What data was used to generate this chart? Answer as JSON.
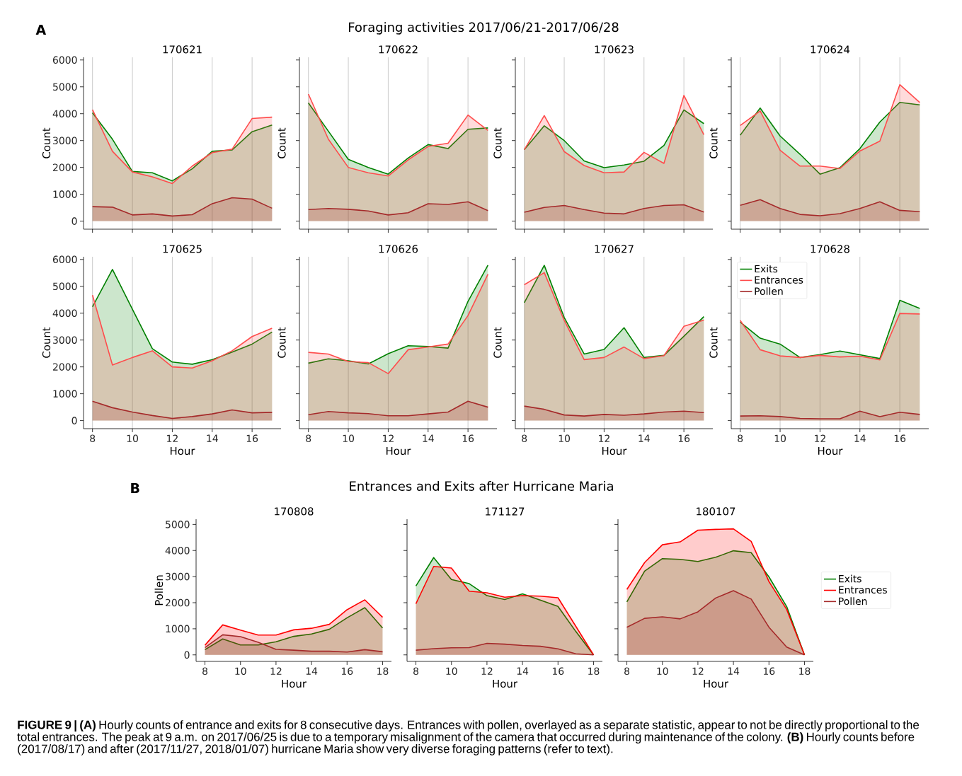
{
  "chart_data": [
    {
      "type": "area",
      "title": "170621",
      "ylabel": "Count",
      "x": [
        8,
        9,
        10,
        11,
        12,
        13,
        14,
        15,
        16,
        17
      ],
      "xlim": [
        7.55,
        17.45
      ],
      "ylim": [
        -300,
        6100
      ],
      "xticks": [
        8,
        10,
        12,
        14,
        16
      ],
      "yticks": [
        0,
        1000,
        2000,
        3000,
        4000,
        5000,
        6000
      ],
      "grid": "x",
      "tick_labels": "y",
      "annotations": [
        "A",
        "Foraging activities 2017/06/21-2017/06/28"
      ],
      "series": [
        {
          "color": "#008000",
          "values": [
            4030,
            3050,
            1850,
            1800,
            1500,
            1950,
            2600,
            2650,
            3330,
            3580
          ]
        },
        {
          "color": "#ff4c4c",
          "values": [
            4150,
            2600,
            1830,
            1650,
            1400,
            2050,
            2550,
            2680,
            3820,
            3870
          ]
        },
        {
          "color": "#a52a2a",
          "values": [
            540,
            520,
            230,
            270,
            190,
            240,
            650,
            870,
            820,
            480
          ]
        }
      ]
    },
    {
      "type": "area",
      "title": "170622",
      "ylabel": "Count",
      "x": [
        8,
        9,
        10,
        11,
        12,
        13,
        14,
        15,
        16,
        17
      ],
      "xlim": [
        7.55,
        17.45
      ],
      "ylim": [
        -300,
        6100
      ],
      "xticks": [
        8,
        10,
        12,
        14,
        16
      ],
      "yticks": [
        0,
        1000,
        2000,
        3000,
        4000,
        5000,
        6000
      ],
      "grid": "x",
      "tick_labels": false,
      "series": [
        {
          "color": "#008000",
          "values": [
            4400,
            3350,
            2300,
            2000,
            1750,
            2350,
            2850,
            2700,
            3420,
            3470
          ]
        },
        {
          "color": "#ff4c4c",
          "values": [
            4730,
            3050,
            2000,
            1800,
            1680,
            2280,
            2780,
            2900,
            3950,
            3380
          ]
        },
        {
          "color": "#a52a2a",
          "values": [
            430,
            470,
            440,
            380,
            230,
            310,
            650,
            620,
            720,
            390
          ]
        }
      ]
    },
    {
      "type": "area",
      "title": "170623",
      "ylabel": "Count",
      "x": [
        8,
        9,
        10,
        11,
        12,
        13,
        14,
        15,
        16,
        17
      ],
      "xlim": [
        7.55,
        17.45
      ],
      "ylim": [
        -300,
        6100
      ],
      "xticks": [
        8,
        10,
        12,
        14,
        16
      ],
      "yticks": [
        0,
        1000,
        2000,
        3000,
        4000,
        5000,
        6000
      ],
      "grid": "x",
      "tick_labels": false,
      "series": [
        {
          "color": "#008000",
          "values": [
            2660,
            3550,
            3000,
            2240,
            1990,
            2090,
            2230,
            2820,
            4140,
            3630
          ]
        },
        {
          "color": "#ff4c4c",
          "values": [
            2660,
            3930,
            2590,
            2070,
            1800,
            1830,
            2560,
            2150,
            4680,
            3220
          ]
        },
        {
          "color": "#a52a2a",
          "values": [
            330,
            510,
            580,
            430,
            300,
            270,
            470,
            580,
            610,
            340
          ]
        }
      ]
    },
    {
      "type": "area",
      "title": "170624",
      "ylabel": "Count",
      "x": [
        8,
        9,
        10,
        11,
        12,
        13,
        14,
        15,
        16,
        17
      ],
      "xlim": [
        7.55,
        17.45
      ],
      "ylim": [
        -300,
        6100
      ],
      "xticks": [
        8,
        10,
        12,
        14,
        16
      ],
      "yticks": [
        0,
        1000,
        2000,
        3000,
        4000,
        5000,
        6000
      ],
      "grid": "x",
      "tick_labels": false,
      "series": [
        {
          "color": "#008000",
          "values": [
            3200,
            4210,
            3170,
            2490,
            1750,
            1990,
            2700,
            3690,
            4420,
            4330
          ]
        },
        {
          "color": "#ff4c4c",
          "values": [
            3560,
            4100,
            2640,
            2050,
            2050,
            1960,
            2610,
            2980,
            5080,
            4420
          ]
        },
        {
          "color": "#a52a2a",
          "values": [
            590,
            800,
            470,
            250,
            200,
            280,
            470,
            720,
            400,
            350
          ]
        }
      ]
    },
    {
      "type": "area",
      "title": "170625",
      "xlabel": "Hour",
      "ylabel": "Count",
      "x": [
        8,
        9,
        10,
        11,
        12,
        13,
        14,
        15,
        16,
        17
      ],
      "xlim": [
        7.55,
        17.45
      ],
      "ylim": [
        -300,
        6100
      ],
      "xticks": [
        8,
        10,
        12,
        14,
        16
      ],
      "yticks": [
        0,
        1000,
        2000,
        3000,
        4000,
        5000,
        6000
      ],
      "grid": "x",
      "series": [
        {
          "color": "#008000",
          "values": [
            4240,
            5630,
            4150,
            2680,
            2180,
            2100,
            2270,
            2550,
            2850,
            3300
          ]
        },
        {
          "color": "#ff4c4c",
          "values": [
            4670,
            2070,
            2350,
            2600,
            2000,
            1960,
            2230,
            2600,
            3130,
            3440
          ]
        },
        {
          "color": "#a52a2a",
          "values": [
            720,
            480,
            320,
            190,
            80,
            150,
            250,
            400,
            290,
            310
          ]
        }
      ]
    },
    {
      "type": "area",
      "title": "170626",
      "xlabel": "Hour",
      "ylabel": "Count",
      "x": [
        8,
        9,
        10,
        11,
        12,
        13,
        14,
        15,
        16,
        17
      ],
      "xlim": [
        7.55,
        17.45
      ],
      "ylim": [
        -300,
        6100
      ],
      "xticks": [
        8,
        10,
        12,
        14,
        16
      ],
      "yticks": [
        0,
        1000,
        2000,
        3000,
        4000,
        5000,
        6000
      ],
      "grid": "x",
      "tick_labels": "x",
      "series": [
        {
          "color": "#008000",
          "values": [
            2140,
            2300,
            2230,
            2110,
            2490,
            2790,
            2760,
            2700,
            4440,
            5790
          ]
        },
        {
          "color": "#ff4c4c",
          "values": [
            2540,
            2480,
            2200,
            2160,
            1750,
            2640,
            2740,
            2850,
            3910,
            5450
          ]
        },
        {
          "color": "#a52a2a",
          "values": [
            220,
            340,
            290,
            260,
            180,
            180,
            250,
            320,
            720,
            500
          ]
        }
      ]
    },
    {
      "type": "area",
      "title": "170627",
      "xlabel": "Hour",
      "ylabel": "Count",
      "x": [
        8,
        9,
        10,
        11,
        12,
        13,
        14,
        15,
        16,
        17
      ],
      "xlim": [
        7.55,
        17.45
      ],
      "ylim": [
        -300,
        6100
      ],
      "xticks": [
        8,
        10,
        12,
        14,
        16
      ],
      "yticks": [
        0,
        1000,
        2000,
        3000,
        4000,
        5000,
        6000
      ],
      "grid": "x",
      "tick_labels": "x",
      "series": [
        {
          "color": "#008000",
          "values": [
            4390,
            5780,
            3840,
            2480,
            2650,
            3460,
            2350,
            2430,
            3140,
            3870
          ]
        },
        {
          "color": "#ff4c4c",
          "values": [
            5060,
            5510,
            3730,
            2270,
            2350,
            2740,
            2310,
            2420,
            3510,
            3740
          ]
        },
        {
          "color": "#a52a2a",
          "values": [
            540,
            420,
            210,
            170,
            230,
            200,
            250,
            320,
            350,
            300
          ]
        }
      ]
    },
    {
      "type": "area",
      "title": "170628",
      "xlabel": "Hour",
      "ylabel": "Count",
      "x": [
        8,
        9,
        10,
        11,
        12,
        13,
        14,
        15,
        16,
        17
      ],
      "xlim": [
        7.55,
        17.45
      ],
      "ylim": [
        -300,
        6100
      ],
      "xticks": [
        8,
        10,
        12,
        14,
        16
      ],
      "yticks": [
        0,
        1000,
        2000,
        3000,
        4000,
        5000,
        6000
      ],
      "grid": "x",
      "tick_labels": "x",
      "legend": "top left",
      "series": [
        {
          "name": "Exits",
          "color": "#008000",
          "values": [
            3670,
            3070,
            2850,
            2350,
            2460,
            2590,
            2450,
            2310,
            4480,
            4180
          ]
        },
        {
          "name": "Entrances",
          "color": "#ff4c4c",
          "values": [
            3730,
            2640,
            2410,
            2350,
            2430,
            2370,
            2400,
            2260,
            3990,
            3970
          ]
        },
        {
          "name": "Pollen",
          "color": "#a52a2a",
          "values": [
            170,
            180,
            150,
            80,
            70,
            70,
            350,
            150,
            310,
            230
          ]
        }
      ]
    },
    {
      "type": "area",
      "title": "170808",
      "xlabel": "Hour",
      "ylabel": "Pollen",
      "x": [
        8,
        9,
        10,
        11,
        12,
        13,
        14,
        15,
        16,
        17,
        18
      ],
      "xlim": [
        7.5,
        18.5
      ],
      "ylim": [
        -250,
        5200
      ],
      "xticks": [
        8,
        10,
        12,
        14,
        16,
        18
      ],
      "yticks": [
        0,
        1000,
        2000,
        3000,
        4000,
        5000
      ],
      "annotations": [
        "B",
        "Entrances and Exits after Hurricane Maria"
      ],
      "series": [
        {
          "color": "#008000",
          "values": [
            200,
            610,
            380,
            380,
            500,
            710,
            800,
            980,
            1420,
            1810,
            1030
          ]
        },
        {
          "color": "#ff0000",
          "values": [
            370,
            1150,
            950,
            760,
            760,
            960,
            1020,
            1170,
            1730,
            2110,
            1440
          ]
        },
        {
          "color": "#a52a2a",
          "values": [
            280,
            770,
            700,
            480,
            210,
            180,
            140,
            140,
            110,
            200,
            120
          ]
        }
      ]
    },
    {
      "type": "area",
      "title": "171127",
      "xlabel": "Hour",
      "x": [
        8,
        9,
        10,
        11,
        12,
        13,
        14,
        15,
        16,
        17,
        18
      ],
      "xlim": [
        7.5,
        18.5
      ],
      "ylim": [
        -250,
        5200
      ],
      "xticks": [
        8,
        10,
        12,
        14,
        16,
        18
      ],
      "yticks": [
        0,
        1000,
        2000,
        3000,
        4000,
        5000
      ],
      "tick_labels": "x",
      "series": [
        {
          "color": "#008000",
          "values": [
            2640,
            3730,
            2890,
            2730,
            2270,
            2120,
            2340,
            2100,
            1860,
            900,
            0
          ]
        },
        {
          "color": "#ff0000",
          "values": [
            1960,
            3390,
            3330,
            2440,
            2380,
            2210,
            2270,
            2250,
            2190,
            1100,
            0
          ]
        },
        {
          "color": "#a52a2a",
          "values": [
            180,
            240,
            270,
            280,
            440,
            410,
            360,
            330,
            230,
            40,
            0
          ]
        }
      ]
    },
    {
      "type": "area",
      "title": "180107",
      "xlabel": "Hour",
      "x": [
        8,
        9,
        10,
        11,
        12,
        13,
        14,
        15,
        16,
        17,
        18
      ],
      "xlim": [
        7.5,
        18.5
      ],
      "ylim": [
        -250,
        5200
      ],
      "xticks": [
        8,
        10,
        12,
        14,
        16,
        18
      ],
      "yticks": [
        0,
        1000,
        2000,
        3000,
        4000,
        5000
      ],
      "tick_labels": "x",
      "legend": "right",
      "annotations": [
        "**FIGURE 9 | (A)** Hourly counts of entrance and exits for 8 consecutive days. Entrances with pollen, overlayed as a separate statistic, appear to not be directly proportional to the total entrances. The peak at 9 a.m. on 2017/06/25 is due to a temporary misalignment of the camera that occurred during maintenance of the colony. **(B)** Hourly counts before (2017/08/17) and after (2017/11/27, 2018/01/07) hurricane Maria show very diverse foraging patterns (refer to text)."
      ],
      "series": [
        {
          "name": "Exits",
          "color": "#008000",
          "values": [
            2030,
            3210,
            3690,
            3660,
            3580,
            3740,
            3990,
            3920,
            2990,
            1850,
            0
          ]
        },
        {
          "name": "Entrances",
          "color": "#ff0000",
          "values": [
            2510,
            3540,
            4220,
            4330,
            4780,
            4810,
            4830,
            4350,
            2810,
            1740,
            0
          ]
        },
        {
          "name": "Pollen",
          "color": "#a52a2a",
          "values": [
            1060,
            1400,
            1460,
            1380,
            1650,
            2180,
            2460,
            2140,
            1060,
            300,
            0
          ]
        }
      ]
    }
  ]
}
